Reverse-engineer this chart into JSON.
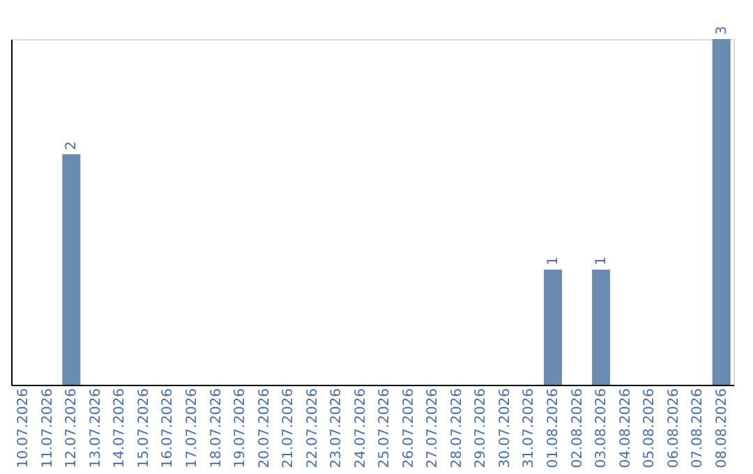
{
  "chart_data": {
    "type": "bar",
    "categories": [
      "10.07.2026",
      "11.07.2026",
      "12.07.2026",
      "13.07.2026",
      "14.07.2026",
      "15.07.2026",
      "16.07.2026",
      "17.07.2026",
      "18.07.2026",
      "19.07.2026",
      "20.07.2026",
      "21.07.2026",
      "22.07.2026",
      "23.07.2026",
      "24.07.2026",
      "25.07.2026",
      "26.07.2026",
      "27.07.2026",
      "28.07.2026",
      "29.07.2026",
      "30.07.2026",
      "31.07.2026",
      "01.08.2026",
      "02.08.2026",
      "03.08.2026",
      "04.08.2026",
      "05.08.2026",
      "06.08.2026",
      "07.08.2026",
      "08.08.2026"
    ],
    "values": [
      0,
      0,
      2,
      0,
      0,
      0,
      0,
      0,
      0,
      0,
      0,
      0,
      0,
      0,
      0,
      0,
      0,
      0,
      0,
      0,
      0,
      0,
      1,
      0,
      1,
      0,
      0,
      0,
      0,
      3
    ],
    "value_labels": [
      null,
      null,
      "2",
      null,
      null,
      null,
      null,
      null,
      null,
      null,
      null,
      null,
      null,
      null,
      null,
      null,
      null,
      null,
      null,
      null,
      null,
      null,
      "1",
      null,
      "1",
      null,
      null,
      null,
      null,
      "3"
    ],
    "color": "#6b8cae",
    "tick_labels": "x",
    "grid": false
  }
}
